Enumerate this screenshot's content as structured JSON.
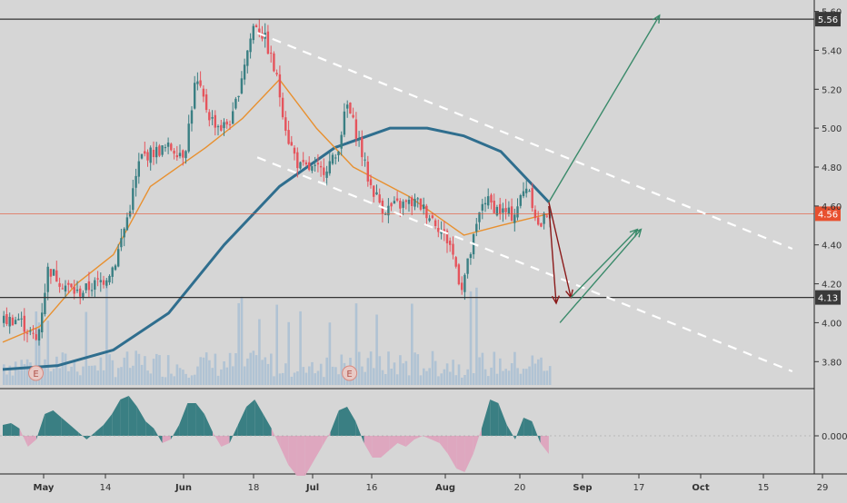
{
  "chart_data": {
    "type": "candlestick",
    "title": "",
    "price_axis": {
      "ticks": [
        "5.60",
        "5.40",
        "5.20",
        "5.00",
        "4.80",
        "4.60",
        "4.40",
        "4.20",
        "4.00",
        "3.80"
      ],
      "tick_values": [
        5.6,
        5.4,
        5.2,
        5.0,
        4.8,
        4.6,
        4.4,
        4.2,
        4.0,
        3.8
      ],
      "range": [
        3.68,
        5.64
      ]
    },
    "time_axis": {
      "labels": [
        "May",
        "14",
        "Jun",
        "18",
        "Jul",
        "16",
        "Aug",
        "20",
        "Sep",
        "17",
        "Oct",
        "15",
        "29"
      ],
      "bold": [
        "May",
        "Jun",
        "Jul",
        "Aug",
        "Sep",
        "Oct"
      ],
      "range_days": [
        0,
        214
      ]
    },
    "horizontal_levels": [
      {
        "value": 5.56,
        "label": "5.56",
        "style": "resistance"
      },
      {
        "value": 4.13,
        "label": "4.13",
        "style": "support"
      }
    ],
    "current_price": {
      "value": 4.56,
      "label": "4.56",
      "color": "#e8502f"
    },
    "close_series_sample": [
      {
        "day": 0,
        "close": 4.01
      },
      {
        "day": 4,
        "close": 4.02
      },
      {
        "day": 9,
        "close": 3.9
      },
      {
        "day": 12,
        "close": 4.28
      },
      {
        "day": 16,
        "close": 4.2
      },
      {
        "day": 20,
        "close": 4.15
      },
      {
        "day": 27,
        "close": 4.22
      },
      {
        "day": 30,
        "close": 4.3
      },
      {
        "day": 34,
        "close": 4.58
      },
      {
        "day": 37,
        "close": 4.85
      },
      {
        "day": 41,
        "close": 4.88
      },
      {
        "day": 45,
        "close": 4.9
      },
      {
        "day": 49,
        "close": 4.87
      },
      {
        "day": 52,
        "close": 5.25
      },
      {
        "day": 56,
        "close": 5.05
      },
      {
        "day": 59,
        "close": 5.0
      },
      {
        "day": 62,
        "close": 5.05
      },
      {
        "day": 65,
        "close": 5.32
      },
      {
        "day": 68,
        "close": 5.55
      },
      {
        "day": 71,
        "close": 5.45
      },
      {
        "day": 74,
        "close": 5.25
      },
      {
        "day": 77,
        "close": 4.95
      },
      {
        "day": 80,
        "close": 4.8
      },
      {
        "day": 86,
        "close": 4.78
      },
      {
        "day": 90,
        "close": 4.85
      },
      {
        "day": 93,
        "close": 5.12
      },
      {
        "day": 96,
        "close": 4.95
      },
      {
        "day": 99,
        "close": 4.72
      },
      {
        "day": 103,
        "close": 4.58
      },
      {
        "day": 106,
        "close": 4.6
      },
      {
        "day": 112,
        "close": 4.62
      },
      {
        "day": 117,
        "close": 4.52
      },
      {
        "day": 121,
        "close": 4.4
      },
      {
        "day": 124,
        "close": 4.18
      },
      {
        "day": 126,
        "close": 4.32
      },
      {
        "day": 130,
        "close": 4.64
      },
      {
        "day": 134,
        "close": 4.58
      },
      {
        "day": 138,
        "close": 4.55
      },
      {
        "day": 142,
        "close": 4.72
      },
      {
        "day": 145,
        "close": 4.48
      },
      {
        "day": 148,
        "close": 4.6
      }
    ],
    "moving_averages": [
      {
        "color": "#2f6e8e",
        "points": [
          [
            0,
            3.76
          ],
          [
            15,
            3.78
          ],
          [
            30,
            3.86
          ],
          [
            45,
            4.05
          ],
          [
            60,
            4.4
          ],
          [
            75,
            4.7
          ],
          [
            90,
            4.9
          ],
          [
            105,
            5.0
          ],
          [
            115,
            5.0
          ],
          [
            125,
            4.96
          ],
          [
            135,
            4.88
          ],
          [
            148,
            4.62
          ]
        ]
      },
      {
        "color": "#e8902f",
        "points": [
          [
            0,
            3.9
          ],
          [
            10,
            3.98
          ],
          [
            20,
            4.2
          ],
          [
            30,
            4.35
          ],
          [
            40,
            4.7
          ],
          [
            55,
            4.9
          ],
          [
            65,
            5.05
          ],
          [
            75,
            5.25
          ],
          [
            85,
            5.0
          ],
          [
            95,
            4.8
          ],
          [
            110,
            4.65
          ],
          [
            125,
            4.45
          ],
          [
            135,
            4.5
          ],
          [
            148,
            4.56
          ]
        ]
      }
    ],
    "channel_lines": [
      {
        "from": [
          69,
          5.49
        ],
        "to": [
          214,
          4.38
        ]
      },
      {
        "from": [
          69,
          4.85
        ],
        "to": [
          214,
          3.75
        ]
      }
    ],
    "projection_arrows": [
      {
        "color": "#3a8a6a",
        "from": [
          148,
          4.62
        ],
        "to": [
          178,
          5.58
        ]
      },
      {
        "color": "#8b1a1a",
        "from": [
          148,
          4.62
        ],
        "to": [
          154,
          4.13
        ]
      },
      {
        "color": "#8b1a1a",
        "from": [
          148,
          4.6
        ],
        "to": [
          150,
          4.1
        ]
      },
      {
        "color": "#3a8a6a",
        "from": [
          154,
          4.13
        ],
        "to": [
          172,
          4.48
        ]
      },
      {
        "color": "#3a8a6a",
        "from": [
          151,
          4.0
        ],
        "to": [
          173,
          4.48
        ]
      }
    ],
    "event_markers": [
      {
        "day": 9,
        "label": "E"
      },
      {
        "day": 94,
        "label": "E"
      }
    ],
    "oscillator": {
      "zero_label": "0.0000",
      "values": [
        0.3,
        0.35,
        0.2,
        -0.3,
        -0.1,
        0.6,
        0.7,
        0.5,
        0.3,
        0.1,
        -0.1,
        0.1,
        0.3,
        0.6,
        1.0,
        1.1,
        0.8,
        0.4,
        0.2,
        -0.2,
        -0.1,
        0.3,
        0.9,
        0.9,
        0.6,
        0.1,
        -0.3,
        -0.2,
        0.3,
        0.8,
        1.0,
        0.6,
        0.2,
        -0.3,
        -0.8,
        -1.1,
        -1.1,
        -0.7,
        -0.3,
        0.1,
        0.7,
        0.8,
        0.4,
        -0.2,
        -0.6,
        -0.6,
        -0.4,
        -0.2,
        -0.3,
        -0.1,
        0.0,
        -0.1,
        -0.2,
        -0.5,
        -0.9,
        -1.0,
        -0.5,
        0.2,
        1.0,
        0.9,
        0.3,
        -0.1,
        0.5,
        0.4,
        -0.2,
        -0.5
      ]
    },
    "colors": {
      "up": "#3a7f83",
      "down": "#e5545c",
      "volume": "#a9c0d4",
      "osc_pos": "#3a7f83",
      "osc_neg": "#dea7bf"
    }
  }
}
